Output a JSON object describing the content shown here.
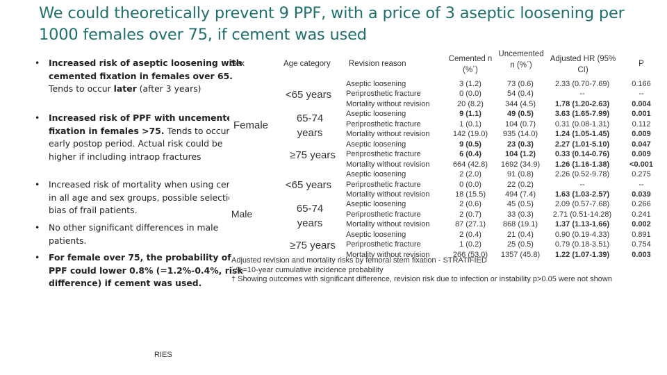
{
  "title": "We could theoretically prevent 9 PPF, with a price of 3 aseptic loosening per 1000 females over 75, if cement was used",
  "bullets": [
    {
      "parts": [
        {
          "t": "Increased risk of aseptic loosening with cemented fixation in females over 65. ",
          "b": true
        },
        {
          "t": "Tends to occur ",
          "b": false
        },
        {
          "t": "later",
          "b": true
        },
        {
          "t": " (after 3 years)",
          "b": false
        }
      ]
    },
    {
      "parts": [
        {
          "t": "Increased risk of PPF with uncemented fixation in females >75. ",
          "b": true
        },
        {
          "t": "Tends to occur in early postop period. Actual risk could be higher if including intraop fractures",
          "b": false
        }
      ]
    },
    {
      "parts": [
        {
          "t": "Increased risk of mortality when using cement in all age and sex groups, possible selection bias of frail patients.",
          "b": false
        }
      ]
    },
    {
      "parts": [
        {
          "t": "No other significant differences in male patients.",
          "b": false
        }
      ]
    },
    {
      "parts": [
        {
          "t": "For female over 75, the probability of PPF could lower 0.8% (=1.2%-0.4%, risk difference) if cement was used.",
          "b": true
        }
      ]
    }
  ],
  "citation": "RIES",
  "table": {
    "headers": {
      "sex": "Sex",
      "age": "Age category",
      "reason": "Revision reason",
      "cemented": "Cemented n (%´)",
      "uncemented": "Uncemented n (%´)",
      "hr": "Adjusted HR (95% CI)",
      "p": "P"
    },
    "sex_labels": [
      "Female",
      "Male"
    ],
    "age_labels": [
      "<65 years",
      "65-74 years",
      "≥75 years",
      "<65 years",
      "65-74 years",
      "≥75 years"
    ],
    "rows": [
      {
        "reason": "Aseptic loosening",
        "cem": "3 (1.2)",
        "unc": "73 (0.6)",
        "hr": "2.33 (0.70-7.69)",
        "p": "0.166",
        "bold": false
      },
      {
        "reason": "Periprosthetic fracture",
        "cem": "0 (0.0)",
        "unc": "54 (0.4)",
        "hr": "--",
        "p": "--",
        "bold": false
      },
      {
        "reason": "Mortality without revision",
        "cem": "20 (8.2)",
        "unc": "344 (4.5)",
        "hr": "1.78 (1.20-2.63)",
        "p": "0.004",
        "bold": true
      },
      {
        "reason": "Aseptic loosening",
        "cem": "9 (1.1)",
        "unc": "49 (0.5)",
        "hr": "3.63 (1.65-7.99)",
        "p": "0.001",
        "bold": true
      },
      {
        "reason": "Periprosthetic fracture",
        "cem": "1 (0.1)",
        "unc": "104 (0.7)",
        "hr": "0.31 (0.08-1.31)",
        "p": "0.112",
        "bold": false
      },
      {
        "reason": "Mortality without revision",
        "cem": "142 (19.0)",
        "unc": "935 (14.0)",
        "hr": "1.24 (1.05-1.45)",
        "p": "0.009",
        "bold": true
      },
      {
        "reason": "Aseptic loosening",
        "cem": "9 (0.5)",
        "unc": "23 (0.3)",
        "hr": "2.27 (1.01-5.10)",
        "p": "0.047",
        "bold": true
      },
      {
        "reason": "Periprosthetic fracture",
        "cem": "6 (0.4)",
        "unc": "104 (1.2)",
        "hr": "0.33 (0.14-0.76)",
        "p": "0.009",
        "bold": true
      },
      {
        "reason": "Mortality without revision",
        "cem": "664 (42.8)",
        "unc": "1692 (34.9)",
        "hr": "1.26 (1.16-1.38)",
        "p": "<0.001",
        "bold": true
      },
      {
        "reason": "Aseptic loosening",
        "cem": "2 (2.0)",
        "unc": "91 (0.8)",
        "hr": "2.26 (0.52-9.78)",
        "p": "0.275",
        "bold": false
      },
      {
        "reason": "Periprosthetic fracture",
        "cem": "0 (0.0)",
        "unc": "22 (0.2)",
        "hr": "--",
        "p": "--",
        "bold": false
      },
      {
        "reason": "Mortality without revision",
        "cem": "18 (15.5)",
        "unc": "494 (7.4)",
        "hr": "1.63 (1.03-2.57)",
        "p": "0.039",
        "bold": true
      },
      {
        "reason": "Aseptic loosening",
        "cem": "2 (0.6)",
        "unc": "45 (0.5)",
        "hr": "2.09 (0.57-7.68)",
        "p": "0.266",
        "bold": false
      },
      {
        "reason": "Periprosthetic fracture",
        "cem": "2 (0.7)",
        "unc": "33 (0.3)",
        "hr": "2.71 (0.51-14.28)",
        "p": "0.241",
        "bold": false
      },
      {
        "reason": "Mortality without revision",
        "cem": "87 (27.1)",
        "unc": "868 (19.1)",
        "hr": "1.37 (1.13-1.66)",
        "p": "0.002",
        "bold": true
      },
      {
        "reason": "Aseptic loosening",
        "cem": "2 (0.4)",
        "unc": "21 (0.4)",
        "hr": "0.90 (0.19-4.33)",
        "p": "0.891",
        "bold": false
      },
      {
        "reason": "Periprosthetic fracture",
        "cem": "1 (0.2)",
        "unc": "25 (0.5)",
        "hr": "0.79 (0.18-3.51)",
        "p": "0.754",
        "bold": false
      },
      {
        "reason": "Mortality without revision",
        "cem": "266 (53.0)",
        "unc": "1357 (45.8)",
        "hr": "1.22 (1.07-1.39)",
        "p": "0.003",
        "bold": true
      }
    ],
    "footnotes": [
      "Adjusted revision and mortality risks by femoral stem fixation - STRATIFIED",
      "´ %=10-year cumulative incidence probability",
      "† Showing outcomes with significant difference, revision risk due to infection or instability p>0.05 were not shown"
    ]
  }
}
